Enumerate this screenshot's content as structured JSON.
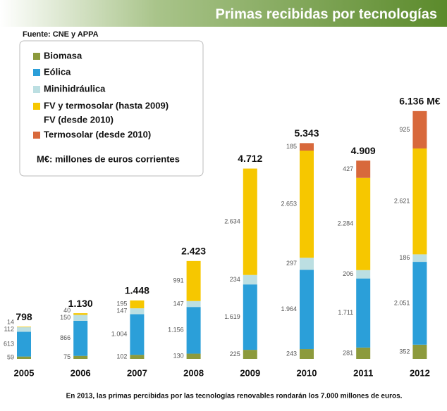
{
  "chart_data": {
    "type": "stacked_bar",
    "title": "Primas recibidas por tecnologías",
    "source": "Fuente: CNE y APPA",
    "footnote": "En 2013, las primas percibidas por las tecnologías renovables rondarán los 7.000 millones de euros.",
    "legend_extra": "FV (desde 2010)",
    "legend_note": "M€: millones de euros corrientes",
    "categories": [
      "2005",
      "2006",
      "2007",
      "2008",
      "2009",
      "2010",
      "2011",
      "2012"
    ],
    "series": [
      {
        "name": "Biomasa",
        "color": "#8c9a3c",
        "values": [
          59,
          75,
          102,
          130,
          225,
          243,
          281,
          352
        ]
      },
      {
        "name": "Eólica",
        "color": "#2b9fd9",
        "values": [
          613,
          866,
          1004,
          1156,
          1619,
          1964,
          1711,
          2051
        ],
        "value_labels": [
          "613",
          "866",
          "1.004",
          "1.156",
          "1.619",
          "1.964",
          "1.711",
          "2.051"
        ]
      },
      {
        "name": "Minihidráulica",
        "color": "#bcdfe2",
        "values": [
          112,
          150,
          147,
          147,
          234,
          297,
          206,
          186
        ]
      },
      {
        "name": "FV y termosolar (hasta 2009)",
        "color": "#f6c700",
        "values": [
          14,
          40,
          195,
          991,
          2634,
          2653,
          2284,
          2621
        ],
        "value_labels": [
          "14",
          "40",
          "195",
          "991",
          "2.634",
          "2.653",
          "2.284",
          "2.621"
        ]
      },
      {
        "name": "Termosolar (desde 2010)",
        "color": "#d8693c",
        "values": [
          null,
          null,
          null,
          null,
          null,
          185,
          427,
          925
        ]
      }
    ],
    "totals": {
      "values": [
        798,
        1130,
        1448,
        2423,
        4712,
        5343,
        4909,
        6136
      ],
      "value_labels": [
        "798",
        "1.130",
        "1.448",
        "2.423",
        "4.712",
        "5.343",
        "4.909",
        "6.136 M€"
      ]
    }
  }
}
